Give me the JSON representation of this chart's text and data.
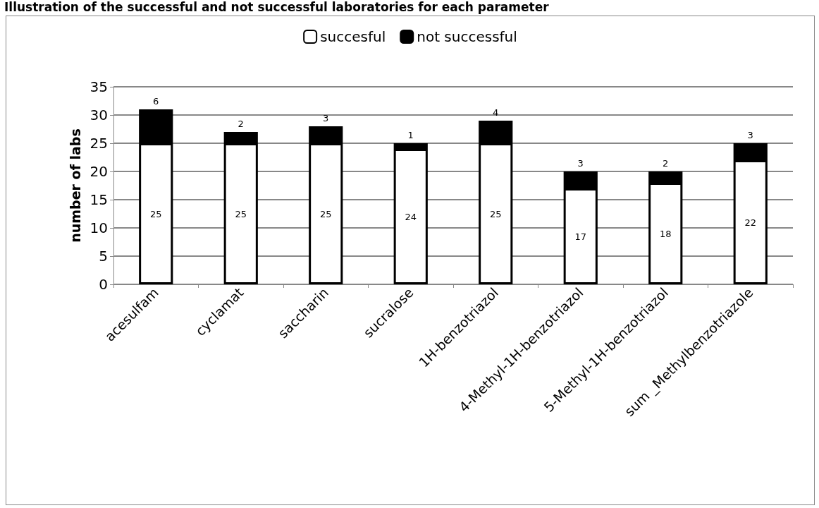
{
  "chart_data": {
    "type": "bar",
    "title": "Illustration of the successful and not successful laboratories for each parameter",
    "ylabel": "number of labs",
    "categories": [
      "acesulfam",
      "cyclamat",
      "saccharin",
      "sucralose",
      "1H-benzotriazol",
      "4-Methyl-1H-benzotriazol",
      "5-Methyl-1H-benzotriazol",
      "sum _Methylbenzotriazole"
    ],
    "series": [
      {
        "name": "succesful",
        "color": "#ffffff",
        "values": [
          25,
          25,
          25,
          24,
          25,
          17,
          18,
          22
        ]
      },
      {
        "name": "not successful",
        "color": "#000000",
        "values": [
          6,
          2,
          3,
          1,
          4,
          3,
          2,
          3
        ]
      }
    ],
    "stacked": true,
    "ylim": [
      0,
      35
    ],
    "yticks": [
      0,
      5,
      10,
      15,
      20,
      25,
      30,
      35
    ],
    "grid": "y",
    "legend": "top",
    "data_labels": true
  }
}
